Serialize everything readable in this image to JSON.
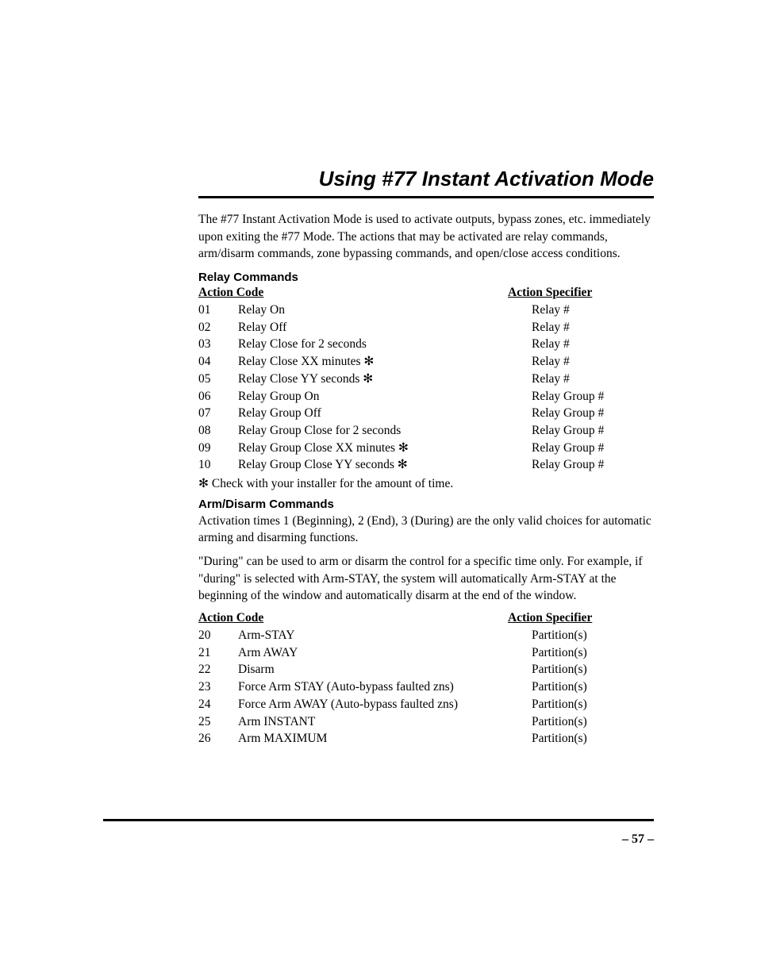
{
  "page": {
    "title": "Using #77 Instant Activation Mode",
    "intro": "The #77 Instant Activation Mode is used to activate outputs, bypass zones, etc. immediately upon exiting the #77 Mode. The actions that may be activated are relay commands, arm/disarm commands, zone bypassing commands, and open/close access conditions.",
    "page_number": "– 57 –"
  },
  "relay": {
    "heading": "Relay Commands",
    "col_left": "Action Code",
    "col_right": "Action Specifier",
    "rows": [
      {
        "code": "01",
        "desc": "Relay On",
        "spec": "Relay #"
      },
      {
        "code": "02",
        "desc": "Relay Off",
        "spec": "Relay #"
      },
      {
        "code": "03",
        "desc": "Relay Close for 2 seconds",
        "spec": "Relay #"
      },
      {
        "code": "04",
        "desc": "Relay Close XX minutes ✻",
        "spec": "Relay #"
      },
      {
        "code": "05",
        "desc": "Relay Close YY seconds ✻",
        "spec": "Relay #"
      },
      {
        "code": "06",
        "desc": "Relay Group On",
        "spec": "Relay Group #"
      },
      {
        "code": "07",
        "desc": "Relay Group Off",
        "spec": "Relay Group #"
      },
      {
        "code": "08",
        "desc": "Relay Group Close for 2 seconds",
        "spec": "Relay Group #"
      },
      {
        "code": "09",
        "desc": "Relay Group Close XX minutes ✻",
        "spec": "Relay Group #"
      },
      {
        "code": "10",
        "desc": "Relay Group Close YY seconds ✻",
        "spec": "Relay Group #"
      }
    ],
    "footnote": "✻ Check with your installer for the amount of time."
  },
  "arm": {
    "heading": "Arm/Disarm Commands",
    "para1": "Activation times 1 (Beginning), 2 (End), 3 (During) are the only valid choices for automatic arming and disarming functions.",
    "para2": "\"During\" can be used to arm or disarm the control for a specific time only. For example, if \"during\" is selected with Arm-STAY, the system will automatically Arm-STAY at the beginning of the window and automatically disarm at the end of the window.",
    "col_left": "Action Code",
    "col_right": "Action Specifier",
    "rows": [
      {
        "code": "20",
        "desc": "Arm-STAY",
        "spec": "Partition(s)"
      },
      {
        "code": "21",
        "desc": "Arm AWAY",
        "spec": "Partition(s)"
      },
      {
        "code": "22",
        "desc": "Disarm",
        "spec": "Partition(s)"
      },
      {
        "code": "23",
        "desc": "Force Arm STAY (Auto-bypass faulted zns)",
        "spec": "Partition(s)"
      },
      {
        "code": "24",
        "desc": "Force Arm AWAY (Auto-bypass faulted zns)",
        "spec": "Partition(s)"
      },
      {
        "code": "25",
        "desc": "Arm INSTANT",
        "spec": "Partition(s)"
      },
      {
        "code": "26",
        "desc": "Arm MAXIMUM",
        "spec": "Partition(s)"
      }
    ]
  }
}
